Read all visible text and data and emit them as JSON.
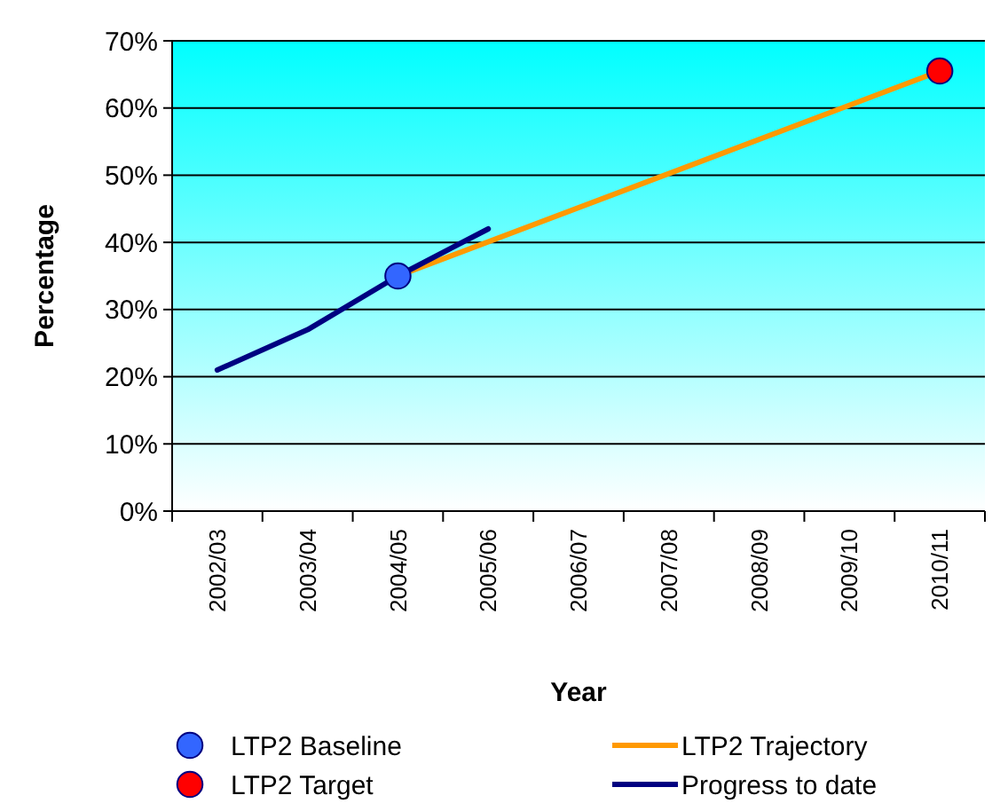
{
  "chart_data": {
    "type": "line",
    "xlabel": "Year",
    "ylabel": "Percentage",
    "categories": [
      "2002/03",
      "2003/04",
      "2004/05",
      "2005/06",
      "2006/07",
      "2007/08",
      "2008/09",
      "2009/10",
      "2010/11"
    ],
    "series": [
      {
        "name": "LTP2 Baseline",
        "type": "scatter",
        "marker": "circle",
        "color": "#3366ff",
        "values": [
          null,
          null,
          35,
          null,
          null,
          null,
          null,
          null,
          null
        ]
      },
      {
        "name": "LTP2 Target",
        "type": "scatter",
        "marker": "circle",
        "color": "#ff0000",
        "values": [
          null,
          null,
          null,
          null,
          null,
          null,
          null,
          null,
          65.5
        ]
      },
      {
        "name": "LTP2 Trajectory",
        "color": "#ff9900",
        "values": [
          null,
          null,
          35,
          null,
          null,
          null,
          null,
          null,
          65.5
        ]
      },
      {
        "name": "Progress to date",
        "color": "#000080",
        "values": [
          21,
          27,
          35,
          42,
          null,
          null,
          null,
          null,
          null
        ]
      }
    ],
    "ylim": [
      0,
      70
    ],
    "yticks": [
      {
        "value": 0,
        "label": "0%"
      },
      {
        "value": 10,
        "label": "10%"
      },
      {
        "value": 20,
        "label": "20%"
      },
      {
        "value": 30,
        "label": "30%"
      },
      {
        "value": 40,
        "label": "40%"
      },
      {
        "value": 50,
        "label": "50%"
      },
      {
        "value": 60,
        "label": "60%"
      },
      {
        "value": 70,
        "label": "70%"
      }
    ],
    "grid": "y",
    "legend": "bottom"
  }
}
